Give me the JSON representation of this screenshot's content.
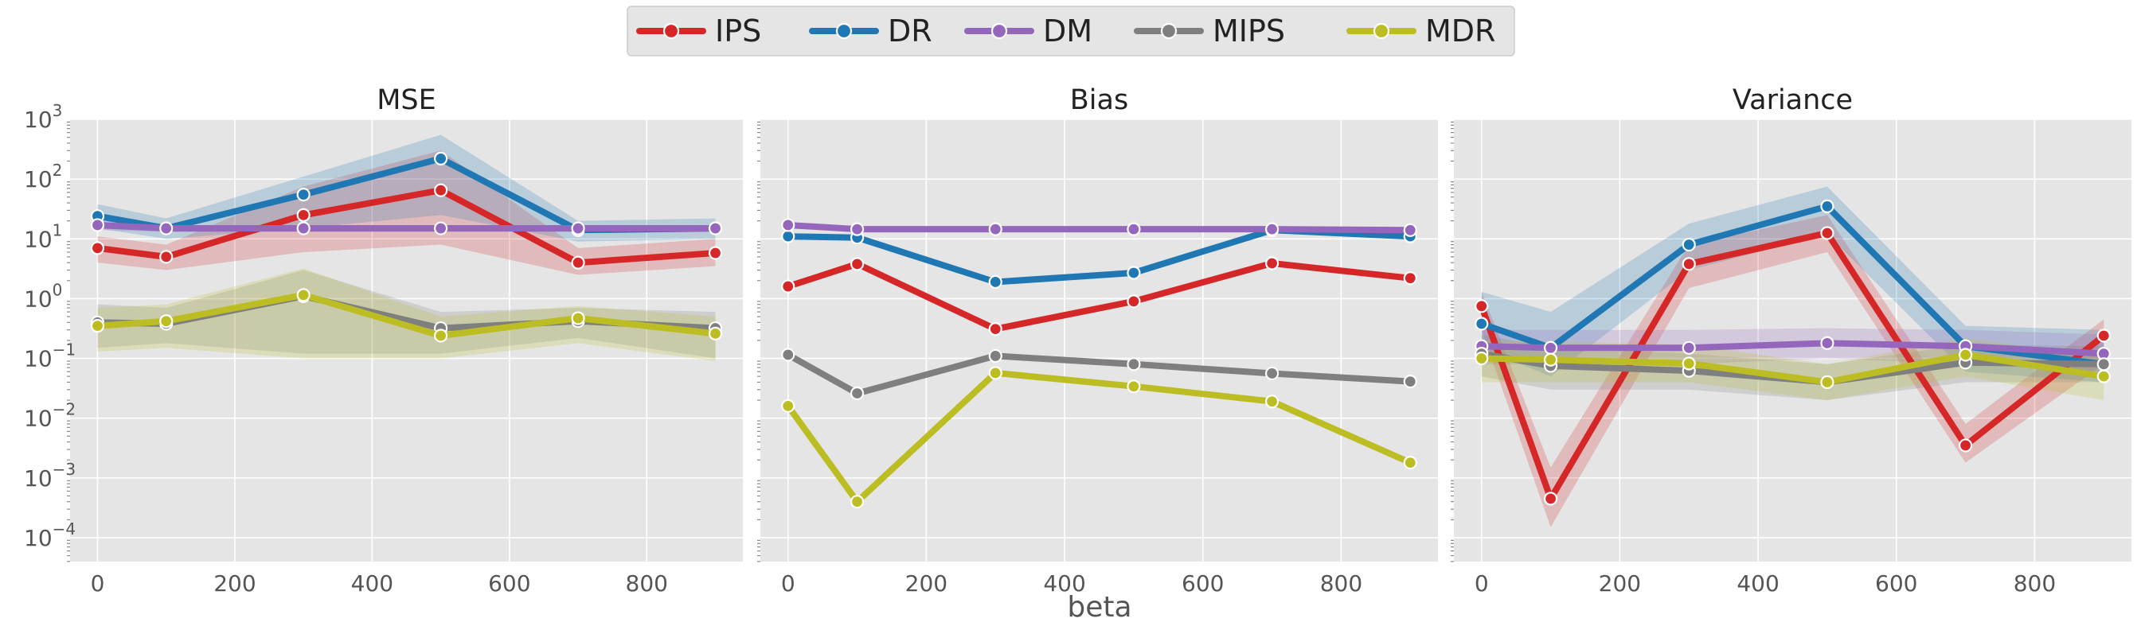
{
  "chart_data": {
    "type": "line",
    "xlabel": "beta",
    "x": [
      0,
      100,
      300,
      500,
      700,
      900
    ],
    "x_ticks": [
      0,
      200,
      400,
      600,
      800
    ],
    "xlim": [
      -40,
      940
    ],
    "y_scale": "log",
    "ylim_exp": [
      -4.4,
      3
    ],
    "y_tick_exponents": [
      -4,
      -3,
      -2,
      -1,
      0,
      1,
      2,
      3
    ],
    "y_tick_base": "10",
    "grid": true,
    "legend_position": "top-center",
    "series_styles": [
      {
        "name": "IPS",
        "color": "#d62728"
      },
      {
        "name": "DR",
        "color": "#1f77b4"
      },
      {
        "name": "DM",
        "color": "#9467bd"
      },
      {
        "name": "MIPS",
        "color": "#7f7f7f"
      },
      {
        "name": "MDR",
        "color": "#bcbd22"
      }
    ],
    "panels": [
      {
        "title": "MSE",
        "series": [
          {
            "name": "IPS",
            "values": [
              7.0,
              5.0,
              25,
              65,
              4.0,
              5.8
            ],
            "lower": [
              4.0,
              3.0,
              6,
              8,
              2.5,
              3.5
            ],
            "upper": [
              11,
              8,
              75,
              300,
              7,
              10
            ]
          },
          {
            "name": "DR",
            "values": [
              24,
              15,
              55,
              220,
              14,
              15
            ],
            "lower": [
              15,
              10,
              15,
              25,
              9,
              10
            ],
            "upper": [
              38,
              22,
              110,
              550,
              20,
              22
            ]
          },
          {
            "name": "DM",
            "values": [
              17,
              15,
              15,
              15,
              15,
              15
            ],
            "lower": [
              14,
              13,
              13,
              13,
              13,
              13
            ],
            "upper": [
              20,
              17,
              17,
              17,
              17,
              17
            ]
          },
          {
            "name": "MIPS",
            "values": [
              0.4,
              0.38,
              1.1,
              0.32,
              0.42,
              0.32
            ],
            "lower": [
              0.15,
              0.18,
              0.12,
              0.12,
              0.22,
              0.1
            ],
            "upper": [
              0.8,
              0.7,
              3.0,
              0.6,
              0.7,
              0.6
            ]
          },
          {
            "name": "MDR",
            "values": [
              0.35,
              0.42,
              1.15,
              0.24,
              0.47,
              0.26
            ],
            "lower": [
              0.13,
              0.15,
              0.1,
              0.1,
              0.18,
              0.09
            ],
            "upper": [
              0.7,
              0.8,
              3.2,
              0.5,
              0.75,
              0.5
            ]
          }
        ]
      },
      {
        "title": "Bias",
        "series": [
          {
            "name": "IPS",
            "values": [
              1.6,
              3.8,
              0.31,
              0.9,
              3.9,
              2.2
            ]
          },
          {
            "name": "DR",
            "values": [
              11,
              10.5,
              1.9,
              2.7,
              14,
              11
            ]
          },
          {
            "name": "DM",
            "values": [
              17,
              14.5,
              14.5,
              14.5,
              14.5,
              14
            ]
          },
          {
            "name": "MIPS",
            "values": [
              0.115,
              0.026,
              0.11,
              0.08,
              0.056,
              0.041
            ]
          },
          {
            "name": "MDR",
            "values": [
              0.016,
              0.0004,
              0.057,
              0.034,
              0.019,
              0.0018
            ]
          }
        ]
      },
      {
        "title": "Variance",
        "series": [
          {
            "name": "IPS",
            "values": [
              0.75,
              0.00045,
              3.8,
              12.5,
              0.0035,
              0.24
            ],
            "lower": [
              0.3,
              0.00015,
              1.5,
              6,
              0.0018,
              0.08
            ],
            "upper": [
              1.3,
              0.0015,
              8,
              25,
              0.008,
              0.45
            ]
          },
          {
            "name": "DR",
            "values": [
              0.38,
              0.15,
              8,
              35,
              0.16,
              0.08
            ],
            "lower": [
              0.15,
              0.05,
              3,
              12,
              0.06,
              0.04
            ],
            "upper": [
              1.3,
              0.6,
              18,
              75,
              0.35,
              0.3
            ]
          },
          {
            "name": "DM",
            "values": [
              0.16,
              0.15,
              0.15,
              0.18,
              0.16,
              0.12
            ],
            "lower": [
              0.08,
              0.08,
              0.08,
              0.1,
              0.08,
              0.06
            ],
            "upper": [
              0.3,
              0.3,
              0.3,
              0.32,
              0.3,
              0.25
            ]
          },
          {
            "name": "MIPS",
            "values": [
              0.12,
              0.075,
              0.062,
              0.04,
              0.085,
              0.08
            ],
            "lower": [
              0.05,
              0.03,
              0.03,
              0.02,
              0.04,
              0.04
            ],
            "upper": [
              0.25,
              0.15,
              0.12,
              0.08,
              0.17,
              0.16
            ]
          },
          {
            "name": "MDR",
            "values": [
              0.1,
              0.095,
              0.082,
              0.04,
              0.115,
              0.05
            ],
            "lower": [
              0.04,
              0.04,
              0.04,
              0.02,
              0.05,
              0.02
            ],
            "upper": [
              0.2,
              0.19,
              0.17,
              0.08,
              0.22,
              0.1
            ]
          }
        ]
      }
    ]
  }
}
